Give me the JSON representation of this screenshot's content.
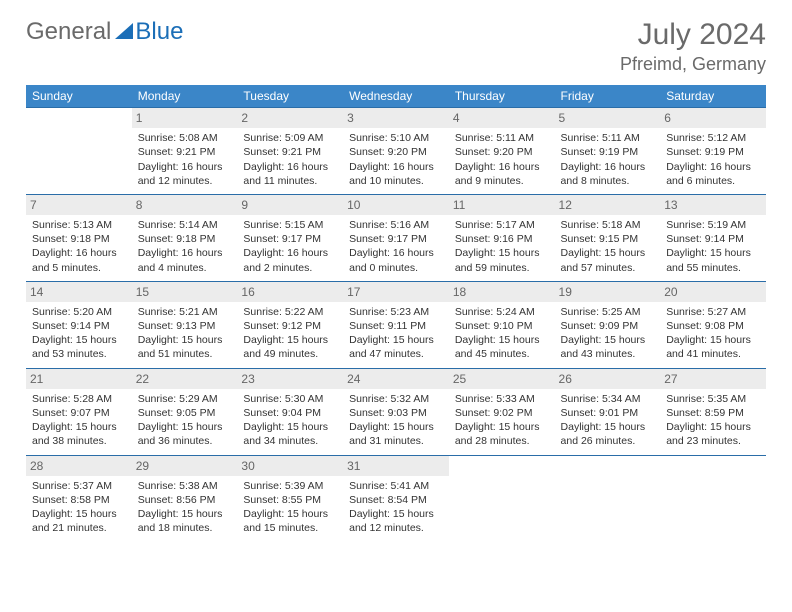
{
  "brand": {
    "part1": "General",
    "part2": "Blue"
  },
  "title": {
    "month": "July 2024",
    "location": "Pfreimd, Germany"
  },
  "colors": {
    "header_bg": "#3b86c8",
    "header_text": "#ffffff",
    "daynum_bg": "#ececec",
    "daynum_text": "#666666",
    "cell_border": "#2a6da8",
    "body_text": "#333333",
    "brand_gray": "#6a6a6a",
    "brand_blue": "#1b6eb7"
  },
  "dow": [
    "Sunday",
    "Monday",
    "Tuesday",
    "Wednesday",
    "Thursday",
    "Friday",
    "Saturday"
  ],
  "weeks": [
    [
      null,
      {
        "d": "1",
        "sr": "5:08 AM",
        "ss": "9:21 PM",
        "dl": "16 hours and 12 minutes."
      },
      {
        "d": "2",
        "sr": "5:09 AM",
        "ss": "9:21 PM",
        "dl": "16 hours and 11 minutes."
      },
      {
        "d": "3",
        "sr": "5:10 AM",
        "ss": "9:20 PM",
        "dl": "16 hours and 10 minutes."
      },
      {
        "d": "4",
        "sr": "5:11 AM",
        "ss": "9:20 PM",
        "dl": "16 hours and 9 minutes."
      },
      {
        "d": "5",
        "sr": "5:11 AM",
        "ss": "9:19 PM",
        "dl": "16 hours and 8 minutes."
      },
      {
        "d": "6",
        "sr": "5:12 AM",
        "ss": "9:19 PM",
        "dl": "16 hours and 6 minutes."
      }
    ],
    [
      {
        "d": "7",
        "sr": "5:13 AM",
        "ss": "9:18 PM",
        "dl": "16 hours and 5 minutes."
      },
      {
        "d": "8",
        "sr": "5:14 AM",
        "ss": "9:18 PM",
        "dl": "16 hours and 4 minutes."
      },
      {
        "d": "9",
        "sr": "5:15 AM",
        "ss": "9:17 PM",
        "dl": "16 hours and 2 minutes."
      },
      {
        "d": "10",
        "sr": "5:16 AM",
        "ss": "9:17 PM",
        "dl": "16 hours and 0 minutes."
      },
      {
        "d": "11",
        "sr": "5:17 AM",
        "ss": "9:16 PM",
        "dl": "15 hours and 59 minutes."
      },
      {
        "d": "12",
        "sr": "5:18 AM",
        "ss": "9:15 PM",
        "dl": "15 hours and 57 minutes."
      },
      {
        "d": "13",
        "sr": "5:19 AM",
        "ss": "9:14 PM",
        "dl": "15 hours and 55 minutes."
      }
    ],
    [
      {
        "d": "14",
        "sr": "5:20 AM",
        "ss": "9:14 PM",
        "dl": "15 hours and 53 minutes."
      },
      {
        "d": "15",
        "sr": "5:21 AM",
        "ss": "9:13 PM",
        "dl": "15 hours and 51 minutes."
      },
      {
        "d": "16",
        "sr": "5:22 AM",
        "ss": "9:12 PM",
        "dl": "15 hours and 49 minutes."
      },
      {
        "d": "17",
        "sr": "5:23 AM",
        "ss": "9:11 PM",
        "dl": "15 hours and 47 minutes."
      },
      {
        "d": "18",
        "sr": "5:24 AM",
        "ss": "9:10 PM",
        "dl": "15 hours and 45 minutes."
      },
      {
        "d": "19",
        "sr": "5:25 AM",
        "ss": "9:09 PM",
        "dl": "15 hours and 43 minutes."
      },
      {
        "d": "20",
        "sr": "5:27 AM",
        "ss": "9:08 PM",
        "dl": "15 hours and 41 minutes."
      }
    ],
    [
      {
        "d": "21",
        "sr": "5:28 AM",
        "ss": "9:07 PM",
        "dl": "15 hours and 38 minutes."
      },
      {
        "d": "22",
        "sr": "5:29 AM",
        "ss": "9:05 PM",
        "dl": "15 hours and 36 minutes."
      },
      {
        "d": "23",
        "sr": "5:30 AM",
        "ss": "9:04 PM",
        "dl": "15 hours and 34 minutes."
      },
      {
        "d": "24",
        "sr": "5:32 AM",
        "ss": "9:03 PM",
        "dl": "15 hours and 31 minutes."
      },
      {
        "d": "25",
        "sr": "5:33 AM",
        "ss": "9:02 PM",
        "dl": "15 hours and 28 minutes."
      },
      {
        "d": "26",
        "sr": "5:34 AM",
        "ss": "9:01 PM",
        "dl": "15 hours and 26 minutes."
      },
      {
        "d": "27",
        "sr": "5:35 AM",
        "ss": "8:59 PM",
        "dl": "15 hours and 23 minutes."
      }
    ],
    [
      {
        "d": "28",
        "sr": "5:37 AM",
        "ss": "8:58 PM",
        "dl": "15 hours and 21 minutes."
      },
      {
        "d": "29",
        "sr": "5:38 AM",
        "ss": "8:56 PM",
        "dl": "15 hours and 18 minutes."
      },
      {
        "d": "30",
        "sr": "5:39 AM",
        "ss": "8:55 PM",
        "dl": "15 hours and 15 minutes."
      },
      {
        "d": "31",
        "sr": "5:41 AM",
        "ss": "8:54 PM",
        "dl": "15 hours and 12 minutes."
      },
      null,
      null,
      null
    ]
  ],
  "labels": {
    "sunrise": "Sunrise:",
    "sunset": "Sunset:",
    "daylight": "Daylight:"
  }
}
